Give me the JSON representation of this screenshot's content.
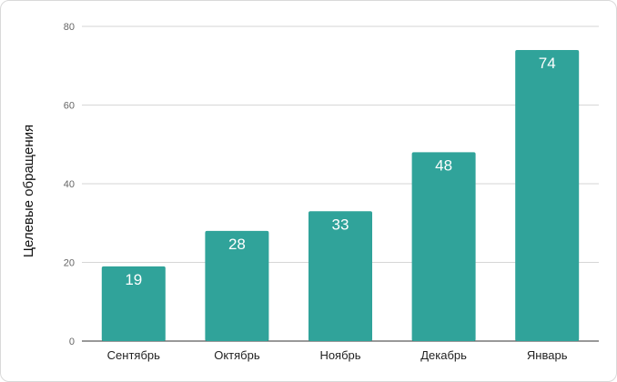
{
  "chart_data": {
    "type": "bar",
    "categories": [
      "Сентябрь",
      "Октябрь",
      "Ноябрь",
      "Декабрь",
      "Январь"
    ],
    "values": [
      19,
      28,
      33,
      48,
      74
    ],
    "title": "",
    "xlabel": "",
    "ylabel": "Целевые обращения",
    "ylim": [
      0,
      80
    ],
    "yticks": [
      0,
      20,
      40,
      60,
      80
    ],
    "grid": true,
    "bar_color": "#30a39a",
    "data_labels": true
  }
}
